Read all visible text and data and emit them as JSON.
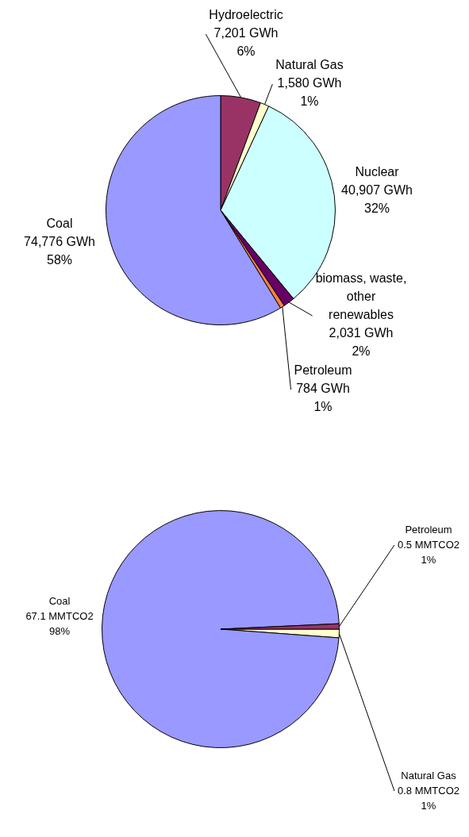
{
  "chart_data": [
    {
      "type": "pie",
      "categories": [
        "Hydroelectric",
        "Natural Gas",
        "Nuclear",
        "biomass, waste, other renewables",
        "Petroleum",
        "Coal"
      ],
      "values": [
        7201,
        1580,
        40907,
        2031,
        784,
        74776
      ],
      "colors": [
        "#993366",
        "#ffffcc",
        "#ccffff",
        "#660066",
        "#ff8040",
        "#9999ff"
      ],
      "value_labels": [
        "7,201 GWh\n6%",
        "1,580 GWh\n1%",
        "40,907 GWh\n32%",
        "2,031 GWh\n2%",
        "784 GWh\n1%",
        "74,776 GWh\n58%"
      ],
      "legend": false
    },
    {
      "type": "pie",
      "categories": [
        "Natural Gas",
        "Coal",
        "Petroleum"
      ],
      "values": [
        0.8,
        67.1,
        0.5
      ],
      "colors": [
        "#ffffcc",
        "#9999ff",
        "#993366"
      ],
      "value_labels": [
        "0.8 MMTCO2\n1%",
        "67.1 MMTCO2\n98%",
        "0.5 MMTCO2\n1%"
      ],
      "legend": false
    }
  ]
}
